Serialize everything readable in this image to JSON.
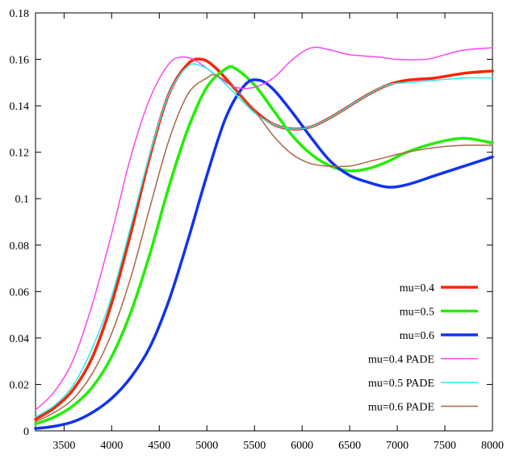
{
  "chart_data": {
    "type": "line",
    "title": "",
    "xlabel": "",
    "ylabel": "",
    "xlim": [
      3200,
      8000
    ],
    "ylim": [
      0,
      0.18
    ],
    "grid": false,
    "legend_position": "bottom-right",
    "x_ticks": [
      3500,
      4000,
      4500,
      5000,
      5500,
      6000,
      6500,
      7000,
      7500,
      8000
    ],
    "x_tick_labels": [
      "3500",
      "4000",
      "4500",
      "5000",
      "5500",
      "6000",
      "6500",
      "7000",
      "7500",
      "8000"
    ],
    "y_ticks": [
      0,
      0.02,
      0.04,
      0.06,
      0.08,
      0.1,
      0.12,
      0.14,
      0.16,
      0.18
    ],
    "y_tick_labels": [
      "0",
      "0.02",
      "0.04",
      "0.06",
      "0.08",
      "0.1",
      "0.12",
      "0.14",
      "0.16",
      "0.18"
    ],
    "series": [
      {
        "name": "mu=0.4",
        "color": "#ff2200",
        "style": "thick",
        "points": [
          [
            3200,
            0.005
          ],
          [
            3400,
            0.01
          ],
          [
            3600,
            0.018
          ],
          [
            3800,
            0.032
          ],
          [
            4000,
            0.055
          ],
          [
            4200,
            0.085
          ],
          [
            4400,
            0.118
          ],
          [
            4600,
            0.145
          ],
          [
            4800,
            0.158
          ],
          [
            4950,
            0.16
          ],
          [
            5100,
            0.156
          ],
          [
            5300,
            0.147
          ],
          [
            5500,
            0.138
          ],
          [
            5700,
            0.132
          ],
          [
            5900,
            0.13
          ],
          [
            6100,
            0.131
          ],
          [
            6300,
            0.135
          ],
          [
            6500,
            0.14
          ],
          [
            6700,
            0.145
          ],
          [
            6900,
            0.149
          ],
          [
            7100,
            0.151
          ],
          [
            7400,
            0.152
          ],
          [
            7700,
            0.154
          ],
          [
            8000,
            0.155
          ]
        ]
      },
      {
        "name": "mu=0.5",
        "color": "#22ee00",
        "style": "thick",
        "points": [
          [
            3200,
            0.003
          ],
          [
            3400,
            0.006
          ],
          [
            3600,
            0.011
          ],
          [
            3800,
            0.019
          ],
          [
            4000,
            0.032
          ],
          [
            4200,
            0.051
          ],
          [
            4400,
            0.076
          ],
          [
            4600,
            0.105
          ],
          [
            4800,
            0.13
          ],
          [
            5000,
            0.148
          ],
          [
            5200,
            0.156
          ],
          [
            5300,
            0.156
          ],
          [
            5500,
            0.149
          ],
          [
            5700,
            0.138
          ],
          [
            5900,
            0.127
          ],
          [
            6100,
            0.119
          ],
          [
            6300,
            0.114
          ],
          [
            6500,
            0.112
          ],
          [
            6700,
            0.113
          ],
          [
            6900,
            0.116
          ],
          [
            7100,
            0.12
          ],
          [
            7400,
            0.124
          ],
          [
            7700,
            0.126
          ],
          [
            8000,
            0.124
          ]
        ]
      },
      {
        "name": "mu=0.6",
        "color": "#1133ee",
        "style": "thick",
        "points": [
          [
            3200,
            0.001
          ],
          [
            3400,
            0.002
          ],
          [
            3600,
            0.004
          ],
          [
            3800,
            0.008
          ],
          [
            4000,
            0.014
          ],
          [
            4200,
            0.023
          ],
          [
            4400,
            0.036
          ],
          [
            4600,
            0.056
          ],
          [
            4800,
            0.082
          ],
          [
            5000,
            0.11
          ],
          [
            5200,
            0.135
          ],
          [
            5400,
            0.149
          ],
          [
            5550,
            0.151
          ],
          [
            5700,
            0.147
          ],
          [
            5900,
            0.137
          ],
          [
            6100,
            0.126
          ],
          [
            6300,
            0.116
          ],
          [
            6500,
            0.11
          ],
          [
            6700,
            0.107
          ],
          [
            6900,
            0.105
          ],
          [
            7100,
            0.106
          ],
          [
            7400,
            0.11
          ],
          [
            7700,
            0.114
          ],
          [
            8000,
            0.118
          ]
        ]
      },
      {
        "name": "mu=0.4 PADE",
        "color": "#ff44ee",
        "style": "thin",
        "points": [
          [
            3200,
            0.009
          ],
          [
            3400,
            0.017
          ],
          [
            3600,
            0.031
          ],
          [
            3800,
            0.055
          ],
          [
            4000,
            0.085
          ],
          [
            4200,
            0.118
          ],
          [
            4400,
            0.143
          ],
          [
            4600,
            0.158
          ],
          [
            4750,
            0.161
          ],
          [
            4900,
            0.159
          ],
          [
            5100,
            0.153
          ],
          [
            5300,
            0.148
          ],
          [
            5500,
            0.148
          ],
          [
            5700,
            0.152
          ],
          [
            5900,
            0.16
          ],
          [
            6100,
            0.165
          ],
          [
            6300,
            0.164
          ],
          [
            6500,
            0.162
          ],
          [
            6800,
            0.161
          ],
          [
            7000,
            0.16
          ],
          [
            7300,
            0.16
          ],
          [
            7500,
            0.162
          ],
          [
            7700,
            0.164
          ],
          [
            8000,
            0.165
          ]
        ]
      },
      {
        "name": "mu=0.5 PADE",
        "color": "#22eeee",
        "style": "thin",
        "points": [
          [
            3200,
            0.006
          ],
          [
            3400,
            0.011
          ],
          [
            3600,
            0.02
          ],
          [
            3800,
            0.036
          ],
          [
            4000,
            0.058
          ],
          [
            4200,
            0.088
          ],
          [
            4400,
            0.119
          ],
          [
            4600,
            0.145
          ],
          [
            4800,
            0.157
          ],
          [
            4950,
            0.157
          ],
          [
            5100,
            0.153
          ],
          [
            5300,
            0.145
          ],
          [
            5500,
            0.137
          ],
          [
            5700,
            0.132
          ],
          [
            5900,
            0.13
          ],
          [
            6100,
            0.131
          ],
          [
            6300,
            0.135
          ],
          [
            6500,
            0.14
          ],
          [
            6700,
            0.145
          ],
          [
            6900,
            0.149
          ],
          [
            7100,
            0.15
          ],
          [
            7400,
            0.151
          ],
          [
            7700,
            0.152
          ],
          [
            8000,
            0.152
          ]
        ]
      },
      {
        "name": "mu=0.6 PADE",
        "color": "#aa6644",
        "style": "thin",
        "points": [
          [
            3200,
            0.004
          ],
          [
            3400,
            0.008
          ],
          [
            3600,
            0.014
          ],
          [
            3800,
            0.025
          ],
          [
            4000,
            0.042
          ],
          [
            4200,
            0.066
          ],
          [
            4400,
            0.096
          ],
          [
            4600,
            0.125
          ],
          [
            4800,
            0.145
          ],
          [
            5000,
            0.152
          ],
          [
            5100,
            0.153
          ],
          [
            5300,
            0.147
          ],
          [
            5500,
            0.138
          ],
          [
            5700,
            0.127
          ],
          [
            5900,
            0.119
          ],
          [
            6100,
            0.115
          ],
          [
            6300,
            0.114
          ],
          [
            6500,
            0.114
          ],
          [
            6700,
            0.116
          ],
          [
            6900,
            0.118
          ],
          [
            7100,
            0.12
          ],
          [
            7400,
            0.122
          ],
          [
            7700,
            0.123
          ],
          [
            8000,
            0.123
          ]
        ]
      }
    ]
  }
}
